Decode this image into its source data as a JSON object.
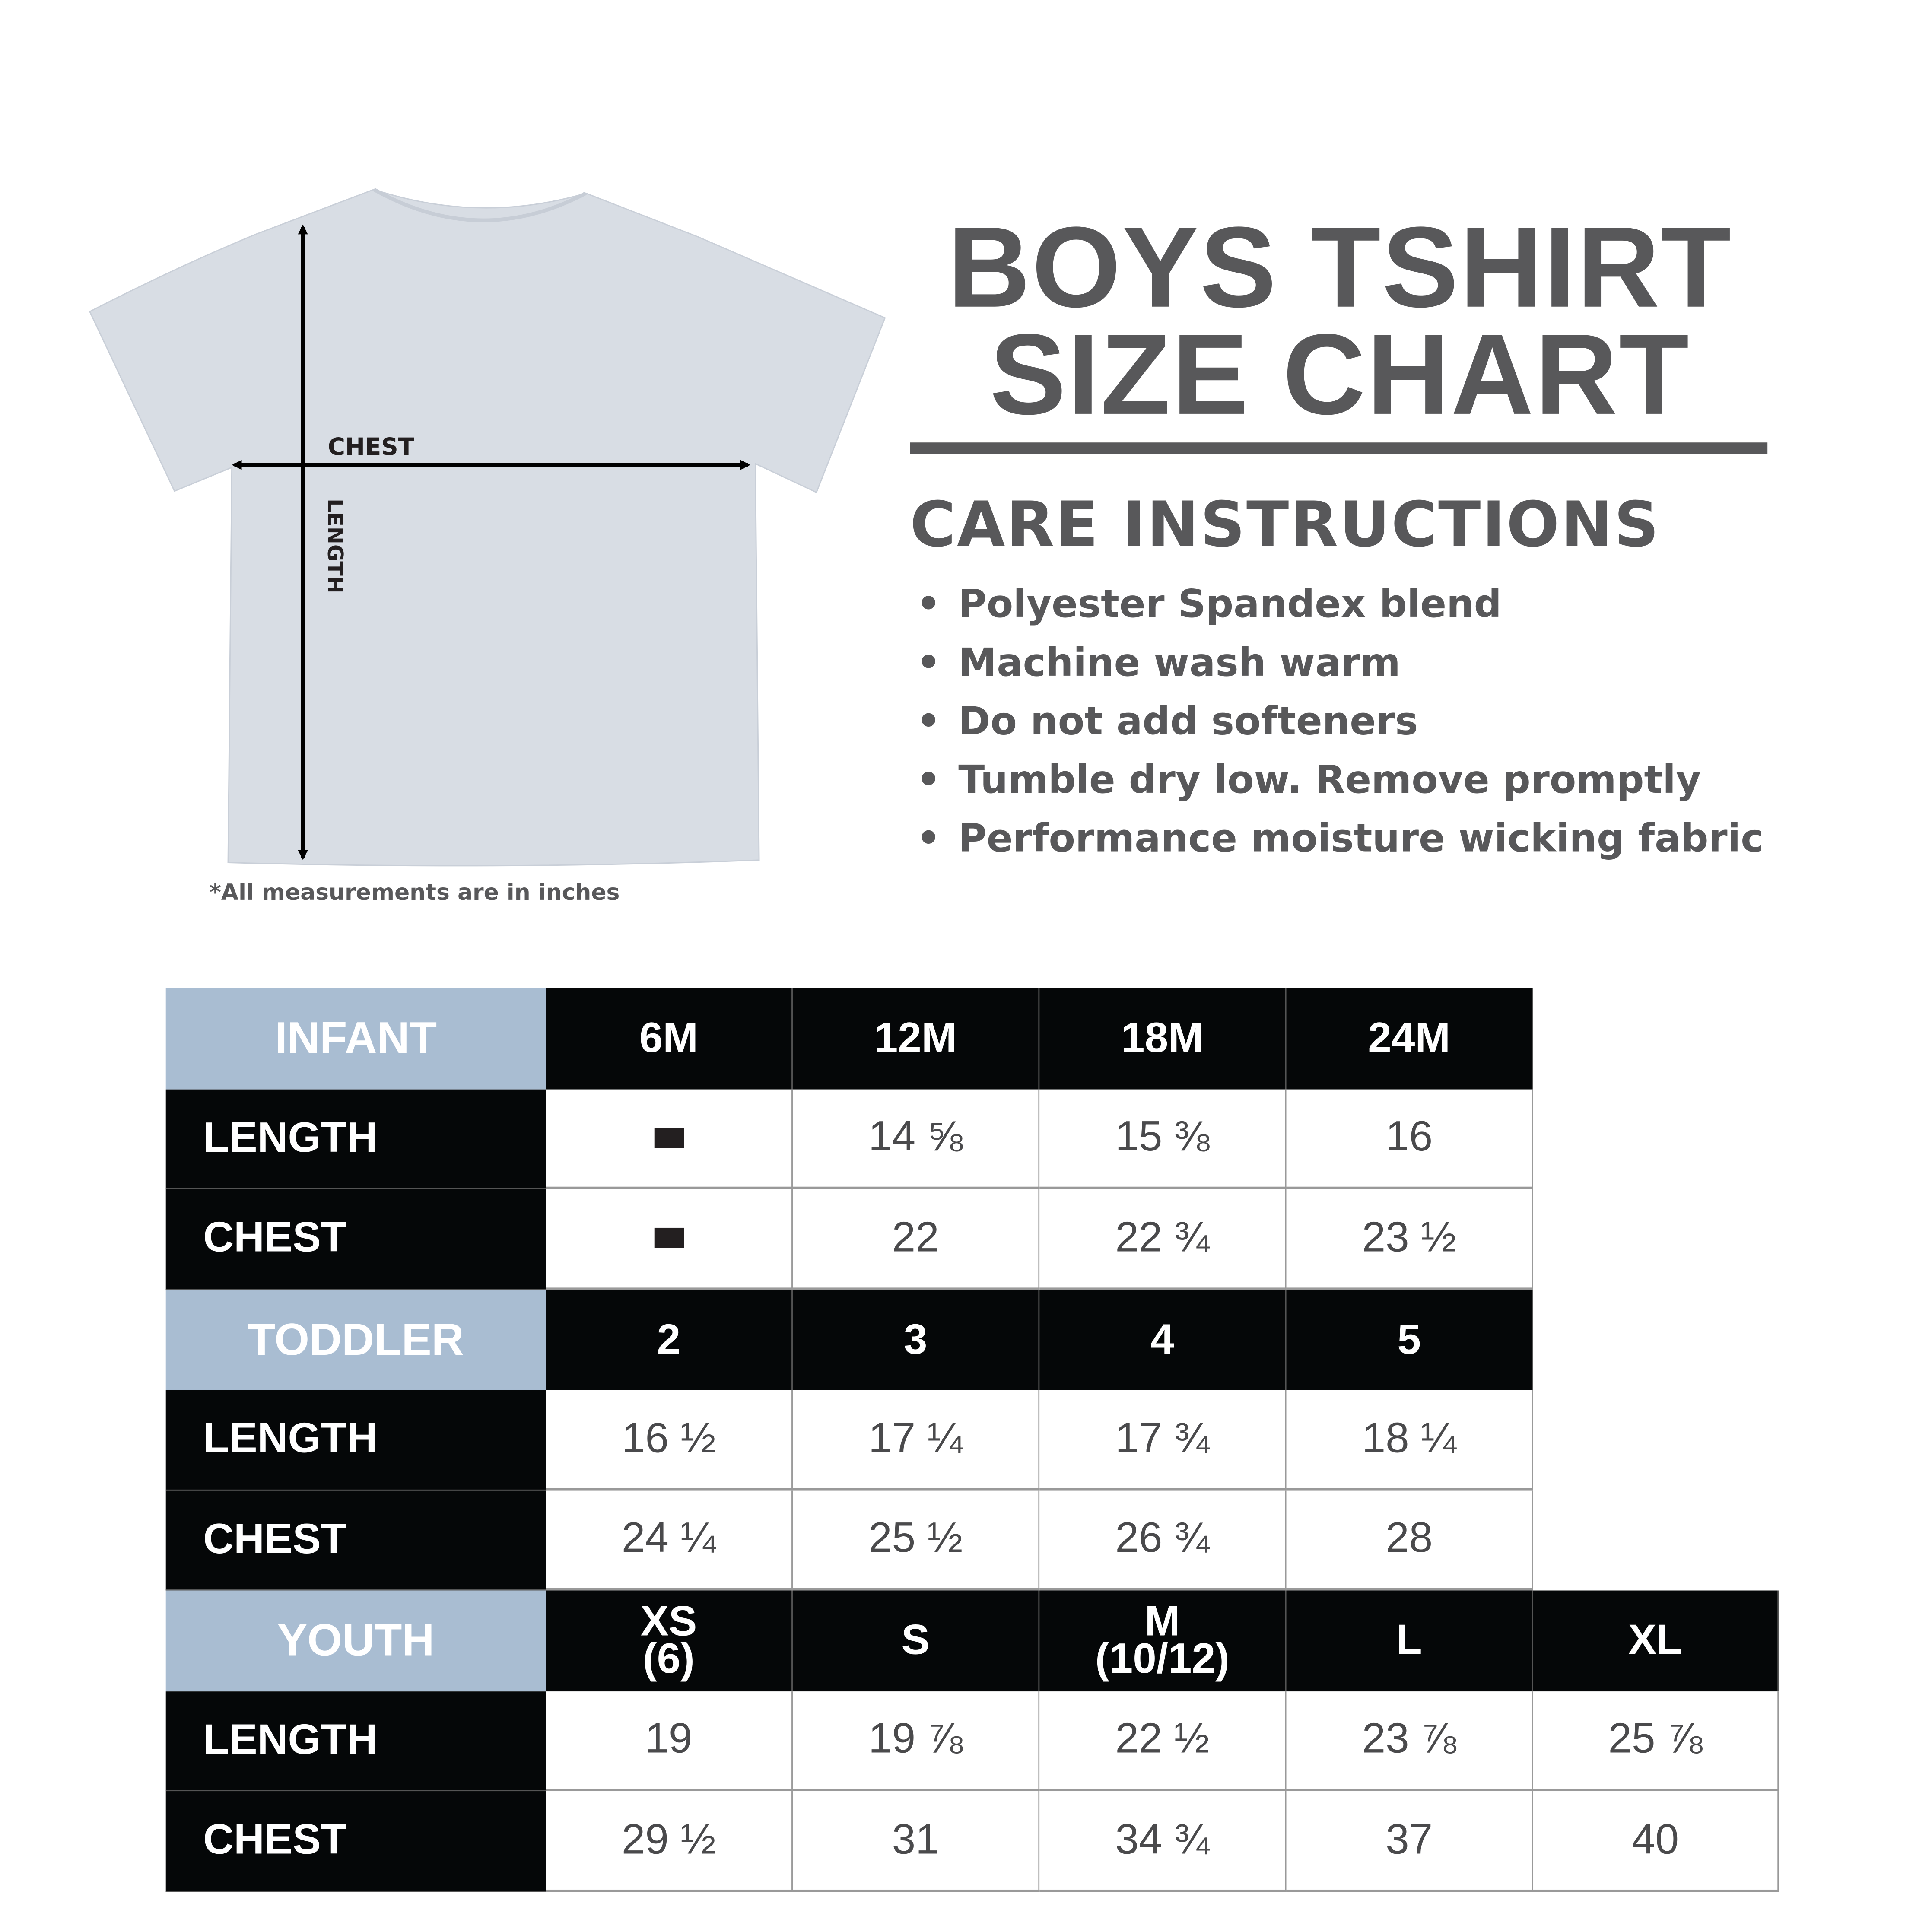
{
  "title": {
    "line1": "BOYS TSHIRT",
    "line2": "SIZE CHART"
  },
  "care": {
    "heading": "CARE INSTRUCTIONS",
    "items": [
      "Polyester Spandex blend",
      "Machine wash warm",
      "Do not add softeners",
      "Tumble dry low. Remove promptly",
      "Performance moisture wicking fabric"
    ]
  },
  "diagram": {
    "chest_label": "CHEST",
    "length_label": "LENGTH",
    "shirt_color": "#d8dde4"
  },
  "note": "*All measurements are in inches",
  "colors": {
    "category_bg": "#a9bdd2",
    "header_bg": "#050708",
    "text": "#58585a"
  },
  "table": {
    "sections": [
      {
        "category": "INFANT",
        "sizes": [
          "6M",
          "12M",
          "18M",
          "24M"
        ],
        "rows": [
          {
            "label": "LENGTH",
            "values": [
              "-",
              "14 ⅝",
              "15 ⅜",
              "16"
            ]
          },
          {
            "label": "CHEST",
            "values": [
              "-",
              "22",
              "22 ¾",
              "23 ½"
            ]
          }
        ]
      },
      {
        "category": "TODDLER",
        "sizes": [
          "2",
          "3",
          "4",
          "5"
        ],
        "rows": [
          {
            "label": "LENGTH",
            "values": [
              "16 ½",
              "17 ¼",
              "17 ¾",
              "18 ¼"
            ]
          },
          {
            "label": "CHEST",
            "values": [
              "24 ¼",
              "25 ½",
              "26 ¾",
              "28"
            ]
          }
        ]
      },
      {
        "category": "YOUTH",
        "sizes": [
          "XS\n(6)",
          "S",
          "M\n(10/12)",
          "L",
          "XL"
        ],
        "rows": [
          {
            "label": "LENGTH",
            "values": [
              "19",
              "19 ⅞",
              "22 ½",
              "23 ⅞",
              "25 ⅞"
            ]
          },
          {
            "label": "CHEST",
            "values": [
              "29 ½",
              "31",
              "34 ¾",
              "37",
              "40"
            ]
          }
        ]
      }
    ]
  }
}
